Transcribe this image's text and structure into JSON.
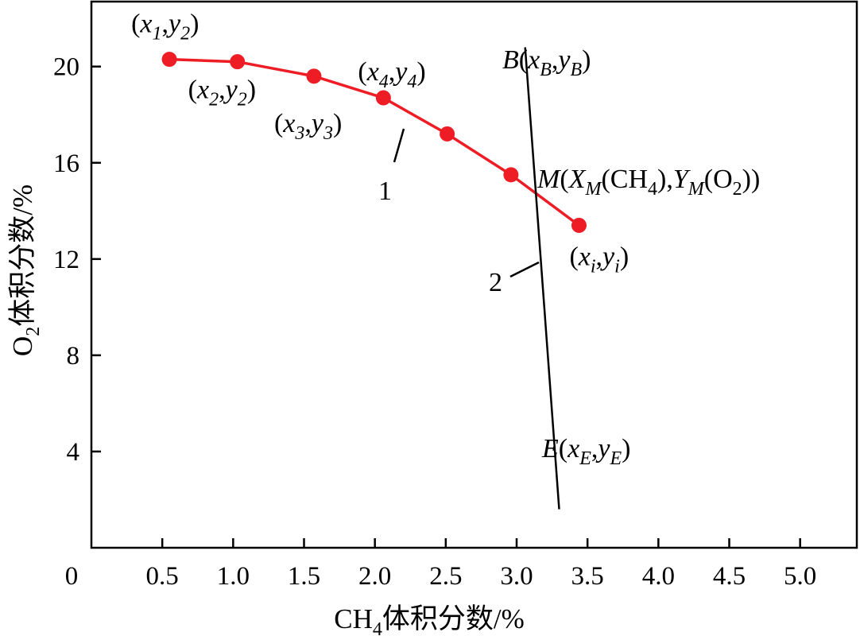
{
  "chart_data": {
    "type": "line",
    "xlabel": {
      "main": "CH",
      "sub": "4",
      "rest": "体积分数/%"
    },
    "ylabel": {
      "main": "O",
      "sub": "2",
      "rest": "体积分数/%"
    },
    "xlim": [
      0,
      5.4
    ],
    "ylim": [
      0,
      22.7
    ],
    "x_ticks": [
      "0.5",
      "1.0",
      "1.5",
      "2.0",
      "2.5",
      "3.0",
      "3.5",
      "4.0",
      "4.5",
      "5.0"
    ],
    "x_origin_label": "0",
    "y_ticks": [
      "4",
      "8",
      "12",
      "16",
      "20"
    ],
    "grid": false,
    "series": [
      {
        "color": "#ee1c24",
        "x": [
          0.55,
          1.03,
          1.57,
          2.06,
          2.51,
          2.96,
          3.44
        ],
        "y": [
          20.3,
          20.2,
          19.6,
          18.7,
          17.2,
          15.5,
          13.4
        ]
      }
    ],
    "line2": {
      "color": "#000000",
      "x": [
        3.06,
        3.3
      ],
      "y": [
        20.8,
        1.6
      ]
    },
    "point_labels": [
      {
        "a": "x",
        "as": "1",
        "b": "y",
        "bs": "2",
        "x": 0.55,
        "y": 20.3
      },
      {
        "a": "x",
        "as": "2",
        "b": "y",
        "bs": "2",
        "x": 1.03,
        "y": 20.2
      },
      {
        "a": "x",
        "as": "3",
        "b": "y",
        "bs": "3",
        "x": 1.57,
        "y": 19.6
      },
      {
        "a": "x",
        "as": "4",
        "b": "y",
        "bs": "4",
        "x": 2.06,
        "y": 18.7
      },
      {
        "a": "x",
        "as": "i",
        "b": "y",
        "bs": "i",
        "x": 3.44,
        "y": 13.4
      }
    ],
    "annotations": {
      "B": {
        "name": "B",
        "a": "x",
        "as": "B",
        "b": "y",
        "bs": "B"
      },
      "E": {
        "name": "E",
        "a": "x",
        "as": "E",
        "b": "y",
        "bs": "E"
      },
      "M": {
        "name": "M",
        "X": "X",
        "Xs": "M",
        "ch": "CH",
        "chs": "4",
        "Y": "Y",
        "Ys": "M",
        "o": "O",
        "os": "2"
      },
      "label1": "1",
      "label2": "2"
    }
  }
}
